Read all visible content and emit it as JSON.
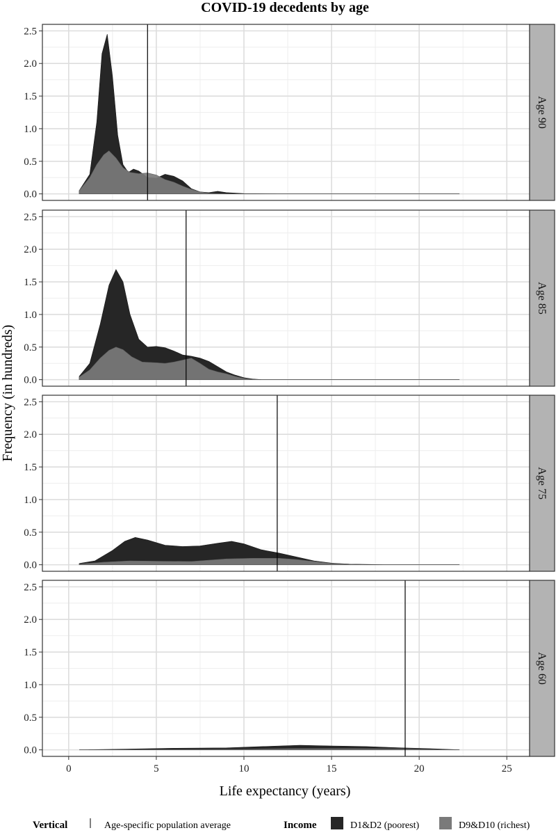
{
  "title": "COVID-19 decedents by age",
  "colors": {
    "poorest": "#262626",
    "richest": "#7a7a7a",
    "panel_bg": "#ffffff",
    "grid_major": "#dddddd",
    "grid_minor": "#eeeeee",
    "strip_bg": "#b3b3b3",
    "vline": "#000000"
  },
  "chart_data": {
    "type": "area",
    "subtype": "density-facets",
    "xlabel": "Life expectancy (years)",
    "ylabel": "Frequency (in hundreds)",
    "xlim": [
      -1.5,
      26.3
    ],
    "ylim": [
      -0.1,
      2.6
    ],
    "x_ticks": [
      0,
      5,
      10,
      15,
      20,
      25
    ],
    "x_tick_labels": [
      "0",
      "5",
      "10",
      "15",
      "20",
      "25"
    ],
    "y_ticks": [
      0,
      0.5,
      1,
      1.5,
      2,
      2.5
    ],
    "y_tick_labels": [
      "0.0",
      "0.5",
      "1.0",
      "1.5",
      "2.0",
      "2.5"
    ],
    "grid": true,
    "legend": {
      "position": "bottom",
      "vertical_title": "Vertical",
      "vertical_label": "Age-specific population average",
      "income_title": "Income",
      "items": [
        {
          "label": "D1&D2 (poorest)",
          "color_key": "poorest"
        },
        {
          "label": "D9&D10 (richest)",
          "color_key": "richest"
        }
      ]
    },
    "panels": [
      {
        "strip": "Age 90",
        "vline": 4.5,
        "series": [
          {
            "key": "poorest",
            "points": [
              [
                0.6,
                0.05
              ],
              [
                1.2,
                0.3
              ],
              [
                1.6,
                1.1
              ],
              [
                1.9,
                2.15
              ],
              [
                2.2,
                2.45
              ],
              [
                2.5,
                1.8
              ],
              [
                2.8,
                0.9
              ],
              [
                3.1,
                0.45
              ],
              [
                3.4,
                0.33
              ],
              [
                3.7,
                0.38
              ],
              [
                4.0,
                0.35
              ],
              [
                4.5,
                0.25
              ],
              [
                5.0,
                0.24
              ],
              [
                5.5,
                0.3
              ],
              [
                6.0,
                0.27
              ],
              [
                6.5,
                0.2
              ],
              [
                7.0,
                0.08
              ],
              [
                7.5,
                0.03
              ],
              [
                8.0,
                0.02
              ],
              [
                8.5,
                0.04
              ],
              [
                9.0,
                0.02
              ],
              [
                10.0,
                0.005
              ],
              [
                12.0,
                0.0
              ],
              [
                22.3,
                0.0
              ]
            ]
          },
          {
            "key": "richest",
            "points": [
              [
                0.6,
                0.05
              ],
              [
                1.2,
                0.25
              ],
              [
                1.6,
                0.45
              ],
              [
                2.0,
                0.6
              ],
              [
                2.3,
                0.66
              ],
              [
                2.7,
                0.55
              ],
              [
                3.1,
                0.4
              ],
              [
                3.5,
                0.33
              ],
              [
                4.0,
                0.31
              ],
              [
                4.5,
                0.32
              ],
              [
                5.0,
                0.29
              ],
              [
                5.5,
                0.22
              ],
              [
                6.0,
                0.18
              ],
              [
                6.5,
                0.12
              ],
              [
                7.0,
                0.07
              ],
              [
                7.5,
                0.03
              ],
              [
                8.0,
                0.01
              ],
              [
                9.0,
                0.0
              ],
              [
                22.3,
                0.0
              ]
            ]
          }
        ]
      },
      {
        "strip": "Age 85",
        "vline": 6.7,
        "series": [
          {
            "key": "poorest",
            "points": [
              [
                0.6,
                0.05
              ],
              [
                1.2,
                0.25
              ],
              [
                1.8,
                0.85
              ],
              [
                2.3,
                1.45
              ],
              [
                2.7,
                1.69
              ],
              [
                3.1,
                1.5
              ],
              [
                3.5,
                1.0
              ],
              [
                4.0,
                0.62
              ],
              [
                4.5,
                0.5
              ],
              [
                5.0,
                0.51
              ],
              [
                5.5,
                0.49
              ],
              [
                6.0,
                0.44
              ],
              [
                6.5,
                0.38
              ],
              [
                7.0,
                0.36
              ],
              [
                7.5,
                0.33
              ],
              [
                8.0,
                0.28
              ],
              [
                8.5,
                0.2
              ],
              [
                9.0,
                0.12
              ],
              [
                9.5,
                0.07
              ],
              [
                10.0,
                0.03
              ],
              [
                10.5,
                0.01
              ],
              [
                11.0,
                0.0
              ],
              [
                22.3,
                0.0
              ]
            ]
          },
          {
            "key": "richest",
            "points": [
              [
                0.6,
                0.04
              ],
              [
                1.2,
                0.15
              ],
              [
                1.8,
                0.33
              ],
              [
                2.3,
                0.45
              ],
              [
                2.7,
                0.5
              ],
              [
                3.1,
                0.46
              ],
              [
                3.6,
                0.35
              ],
              [
                4.2,
                0.27
              ],
              [
                5.0,
                0.26
              ],
              [
                5.5,
                0.25
              ],
              [
                6.0,
                0.27
              ],
              [
                6.5,
                0.3
              ],
              [
                7.0,
                0.33
              ],
              [
                7.5,
                0.25
              ],
              [
                8.0,
                0.16
              ],
              [
                8.5,
                0.12
              ],
              [
                9.0,
                0.09
              ],
              [
                9.5,
                0.05
              ],
              [
                10.0,
                0.02
              ],
              [
                10.5,
                0.005
              ],
              [
                11.0,
                0.0
              ],
              [
                22.3,
                0.0
              ]
            ]
          }
        ]
      },
      {
        "strip": "Age 75",
        "vline": 11.9,
        "series": [
          {
            "key": "poorest",
            "points": [
              [
                0.6,
                0.02
              ],
              [
                1.5,
                0.06
              ],
              [
                2.5,
                0.22
              ],
              [
                3.2,
                0.36
              ],
              [
                3.8,
                0.42
              ],
              [
                4.5,
                0.38
              ],
              [
                5.5,
                0.3
              ],
              [
                6.5,
                0.28
              ],
              [
                7.5,
                0.29
              ],
              [
                8.5,
                0.33
              ],
              [
                9.3,
                0.36
              ],
              [
                10.0,
                0.32
              ],
              [
                11.0,
                0.23
              ],
              [
                12.0,
                0.18
              ],
              [
                13.0,
                0.12
              ],
              [
                14.0,
                0.06
              ],
              [
                15.0,
                0.025
              ],
              [
                16.0,
                0.01
              ],
              [
                18.0,
                0.0
              ],
              [
                22.3,
                0.0
              ]
            ]
          },
          {
            "key": "richest",
            "points": [
              [
                0.6,
                0.01
              ],
              [
                2.0,
                0.04
              ],
              [
                3.5,
                0.06
              ],
              [
                5.0,
                0.055
              ],
              [
                7.0,
                0.05
              ],
              [
                9.0,
                0.09
              ],
              [
                10.5,
                0.1
              ],
              [
                12.0,
                0.1
              ],
              [
                13.0,
                0.08
              ],
              [
                14.0,
                0.05
              ],
              [
                15.0,
                0.02
              ],
              [
                16.0,
                0.01
              ],
              [
                17.0,
                0.0
              ],
              [
                22.3,
                0.0
              ]
            ]
          }
        ]
      },
      {
        "strip": "Age 60",
        "vline": 19.2,
        "series": [
          {
            "key": "poorest",
            "points": [
              [
                0.6,
                0.0
              ],
              [
                3.0,
                0.01
              ],
              [
                6.0,
                0.025
              ],
              [
                9.0,
                0.03
              ],
              [
                11.0,
                0.05
              ],
              [
                13.2,
                0.07
              ],
              [
                15.0,
                0.06
              ],
              [
                17.0,
                0.05
              ],
              [
                19.0,
                0.03
              ],
              [
                20.5,
                0.02
              ],
              [
                22.3,
                0.0
              ]
            ]
          },
          {
            "key": "richest",
            "points": [
              [
                0.6,
                0.0
              ],
              [
                6.0,
                0.005
              ],
              [
                10.0,
                0.01
              ],
              [
                13.0,
                0.02
              ],
              [
                16.0,
                0.02
              ],
              [
                19.0,
                0.015
              ],
              [
                22.3,
                0.0
              ]
            ]
          }
        ]
      }
    ]
  }
}
